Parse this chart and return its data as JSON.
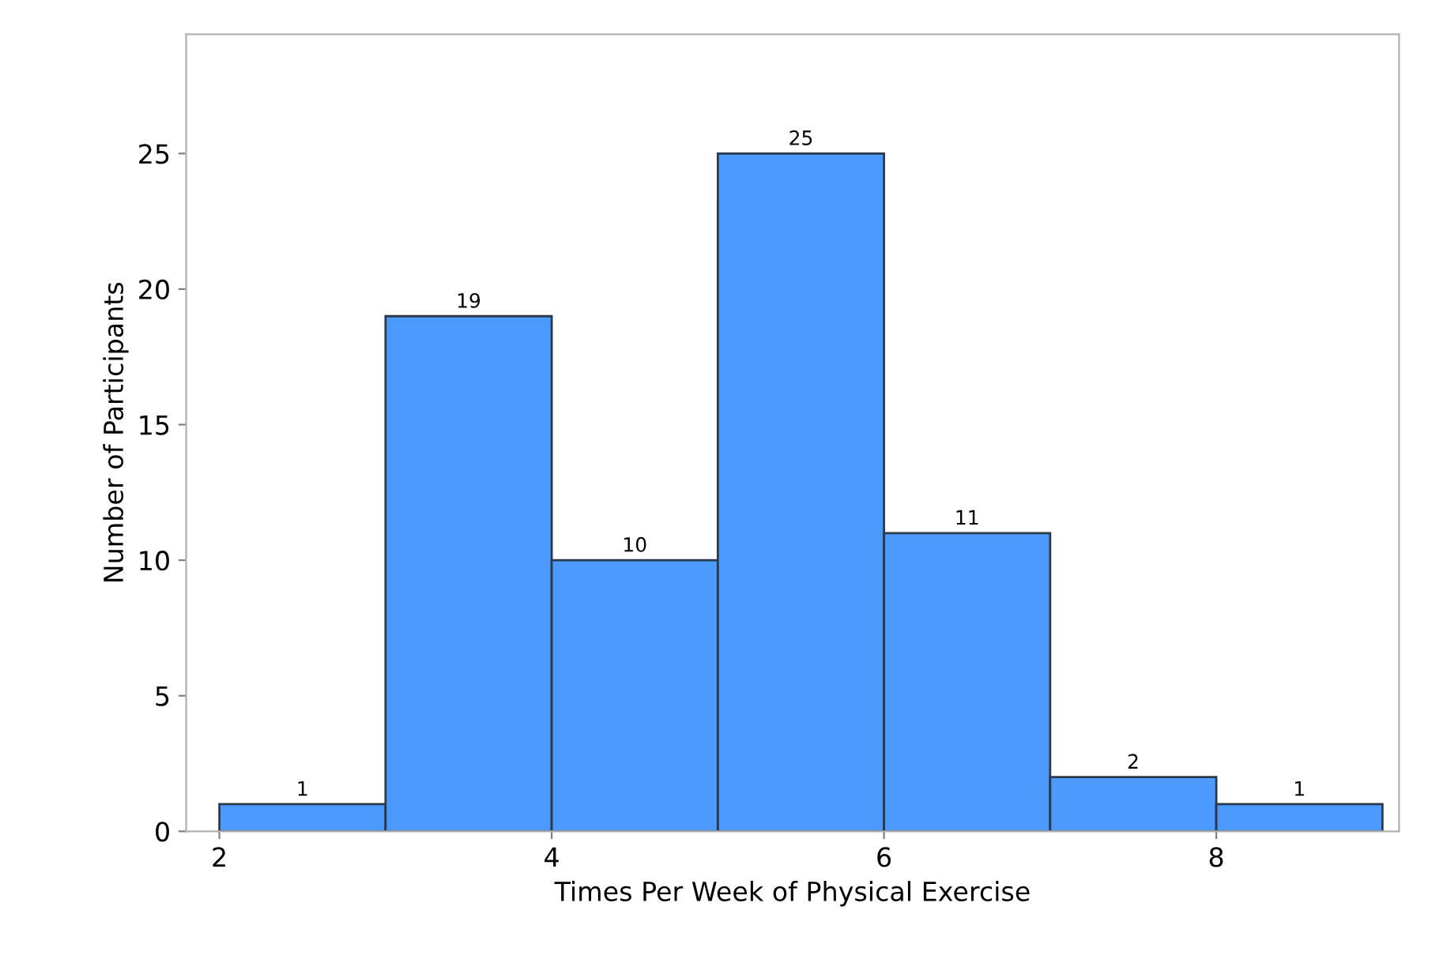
{
  "chart_data": {
    "type": "histogram",
    "xlabel": "Times Per Week of Physical Exercise",
    "ylabel": "Number of Participants",
    "bins": [
      2,
      3,
      4,
      5,
      6,
      7,
      8,
      9
    ],
    "values": [
      1,
      19,
      10,
      25,
      11,
      2,
      1
    ],
    "color": "#4d9aff",
    "xlim": [
      1.8,
      9.1
    ],
    "xticks": [
      2,
      4,
      6,
      8
    ],
    "ylim": [
      0,
      29.4
    ],
    "yticks": [
      0,
      5,
      10,
      15,
      20,
      25
    ],
    "data_labels": true,
    "grid": false,
    "legend": false
  }
}
